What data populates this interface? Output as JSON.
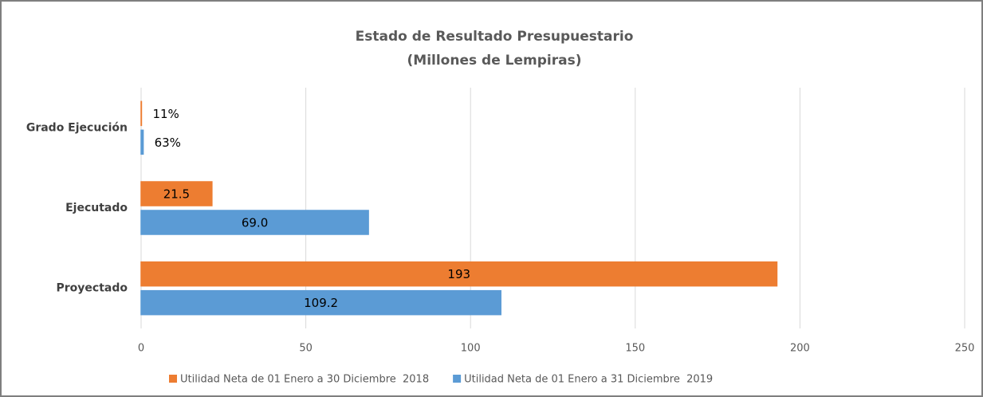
{
  "chart_data": {
    "type": "barh",
    "title": "Estado de Resultado Presupuestario",
    "subtitle": "(Millones de Lempiras)",
    "categories": [
      "Grado Ejecución",
      "Ejecutado",
      "Proyectado"
    ],
    "series": [
      {
        "name": "Utilidad Neta de 01 Enero a 30 Diciembre  2018",
        "color": "#ed7d31",
        "values": [
          0.11,
          21.5,
          193
        ],
        "value_labels": [
          "11%",
          "21.5",
          "193"
        ]
      },
      {
        "name": "Utilidad Neta de 01 Enero a 31 Diciembre  2019",
        "color": "#5b9bd5",
        "values": [
          0.63,
          69.0,
          109.2
        ],
        "value_labels": [
          "63%",
          "69.0",
          "109.2"
        ]
      }
    ],
    "xlim": [
      0,
      250
    ],
    "xticks": [
      0,
      50,
      100,
      150,
      200,
      250
    ],
    "grid": true,
    "legend": "bottom"
  }
}
